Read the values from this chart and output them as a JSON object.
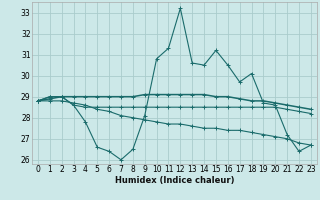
{
  "xlabel": "Humidex (Indice chaleur)",
  "background_color": "#cce8e8",
  "grid_color": "#aacccc",
  "line_color": "#1a6b6b",
  "x_values": [
    0,
    1,
    2,
    3,
    4,
    5,
    6,
    7,
    8,
    9,
    10,
    11,
    12,
    13,
    14,
    15,
    16,
    17,
    18,
    19,
    20,
    21,
    22,
    23
  ],
  "series1": [
    28.8,
    29.0,
    29.0,
    28.6,
    27.8,
    26.6,
    26.4,
    26.0,
    26.5,
    28.1,
    30.8,
    31.3,
    33.2,
    30.6,
    30.5,
    31.2,
    30.5,
    29.7,
    30.1,
    28.7,
    28.6,
    27.2,
    26.4,
    26.7
  ],
  "series2": [
    28.8,
    29.0,
    29.0,
    28.6,
    28.5,
    28.5,
    28.5,
    28.5,
    28.5,
    28.5,
    28.5,
    28.5,
    28.5,
    28.5,
    28.5,
    28.5,
    28.5,
    28.5,
    28.5,
    28.5,
    28.5,
    28.4,
    28.3,
    28.2
  ],
  "series3": [
    28.8,
    28.9,
    29.0,
    29.0,
    29.0,
    29.0,
    29.0,
    29.0,
    29.0,
    29.1,
    29.1,
    29.1,
    29.1,
    29.1,
    29.1,
    29.0,
    29.0,
    28.9,
    28.8,
    28.8,
    28.7,
    28.6,
    28.5,
    28.4
  ],
  "series4": [
    28.8,
    28.8,
    28.8,
    28.7,
    28.6,
    28.4,
    28.3,
    28.1,
    28.0,
    27.9,
    27.8,
    27.7,
    27.7,
    27.6,
    27.5,
    27.5,
    27.4,
    27.4,
    27.3,
    27.2,
    27.1,
    27.0,
    26.8,
    26.7
  ],
  "ylim": [
    25.8,
    33.5
  ],
  "xlim": [
    -0.5,
    23.5
  ],
  "yticks": [
    26,
    27,
    28,
    29,
    30,
    31,
    32,
    33
  ],
  "xticks": [
    0,
    1,
    2,
    3,
    4,
    5,
    6,
    7,
    8,
    9,
    10,
    11,
    12,
    13,
    14,
    15,
    16,
    17,
    18,
    19,
    20,
    21,
    22,
    23
  ]
}
